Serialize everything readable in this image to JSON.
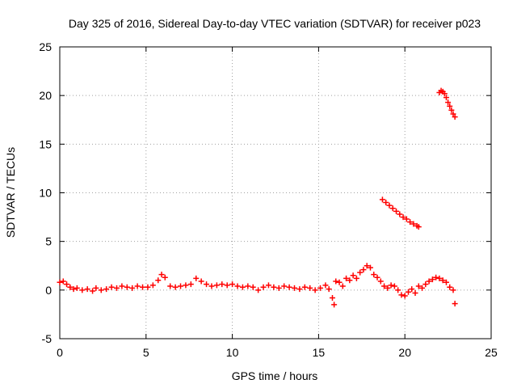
{
  "chart_data": {
    "type": "scatter",
    "title": "Day 325 of 2016, Sidereal Day-to-day VTEC variation (SDTVAR) for receiver p023",
    "xlabel": "GPS time / hours",
    "ylabel": "SDTVAR / TECUs",
    "xlim": [
      0,
      25
    ],
    "ylim": [
      -5,
      25
    ],
    "x_ticks": [
      0,
      5,
      10,
      15,
      20,
      25
    ],
    "y_ticks": [
      -5,
      0,
      5,
      10,
      15,
      20,
      25
    ],
    "x_tick_labels": [
      "0",
      "5",
      "10",
      "15",
      "20",
      "25"
    ],
    "y_tick_labels": [
      "-5",
      "0",
      "5",
      "10",
      "15",
      "20",
      "25"
    ],
    "grid": true,
    "marker": "plus",
    "color": "#ff0000",
    "series": [
      {
        "name": "SDTVAR",
        "x": [
          0.0,
          0.2,
          0.4,
          0.6,
          0.8,
          1.0,
          1.3,
          1.6,
          1.9,
          2.1,
          2.4,
          2.7,
          3.0,
          3.3,
          3.6,
          3.9,
          4.2,
          4.5,
          4.8,
          5.1,
          5.4,
          5.7,
          5.9,
          6.1,
          6.4,
          6.7,
          7.0,
          7.3,
          7.6,
          7.9,
          8.2,
          8.5,
          8.8,
          9.1,
          9.4,
          9.7,
          10.0,
          10.3,
          10.6,
          10.9,
          11.2,
          11.5,
          11.8,
          12.1,
          12.4,
          12.7,
          13.0,
          13.3,
          13.6,
          13.9,
          14.2,
          14.5,
          14.8,
          15.1,
          15.4,
          15.6,
          15.8,
          15.9,
          16.0,
          16.2,
          16.4,
          16.6,
          16.8,
          17.0,
          17.2,
          17.4,
          17.6,
          17.8,
          18.0,
          18.2,
          18.4,
          18.6,
          18.8,
          19.0,
          19.2,
          19.4,
          19.6,
          19.8,
          20.0,
          20.2,
          20.4,
          20.6,
          20.8,
          21.0,
          21.2,
          21.4,
          21.6,
          21.8,
          22.0,
          22.2,
          22.4,
          22.6,
          22.8,
          22.9,
          18.7,
          18.9,
          19.1,
          19.3,
          19.5,
          19.7,
          19.9,
          20.1,
          20.3,
          20.5,
          20.7,
          20.8,
          22.0,
          22.1,
          22.2,
          22.3,
          22.4,
          22.5,
          22.6,
          22.7,
          22.8,
          22.9
        ],
        "y": [
          0.8,
          0.9,
          0.6,
          0.3,
          0.1,
          0.2,
          0.0,
          0.1,
          -0.1,
          0.2,
          0.0,
          0.1,
          0.3,
          0.2,
          0.4,
          0.3,
          0.2,
          0.4,
          0.3,
          0.3,
          0.5,
          1.0,
          1.6,
          1.3,
          0.4,
          0.3,
          0.4,
          0.5,
          0.6,
          1.2,
          0.9,
          0.6,
          0.4,
          0.5,
          0.6,
          0.5,
          0.6,
          0.4,
          0.3,
          0.4,
          0.3,
          0.0,
          0.3,
          0.5,
          0.3,
          0.2,
          0.4,
          0.3,
          0.2,
          0.1,
          0.3,
          0.2,
          0.0,
          0.2,
          0.5,
          0.1,
          -0.8,
          -1.5,
          0.9,
          0.8,
          0.4,
          1.2,
          1.0,
          1.5,
          1.2,
          1.8,
          2.1,
          2.5,
          2.3,
          1.6,
          1.3,
          0.9,
          0.4,
          0.2,
          0.5,
          0.4,
          0.0,
          -0.5,
          -0.6,
          -0.2,
          0.1,
          -0.3,
          0.4,
          0.2,
          0.6,
          0.9,
          1.1,
          1.3,
          1.2,
          1.0,
          0.8,
          0.3,
          0.0,
          -1.4,
          9.3,
          9.0,
          8.7,
          8.4,
          8.1,
          7.8,
          7.5,
          7.3,
          7.0,
          6.8,
          6.6,
          6.5,
          20.3,
          20.5,
          20.4,
          20.2,
          19.8,
          19.3,
          18.9,
          18.5,
          18.1,
          17.8
        ]
      }
    ]
  }
}
